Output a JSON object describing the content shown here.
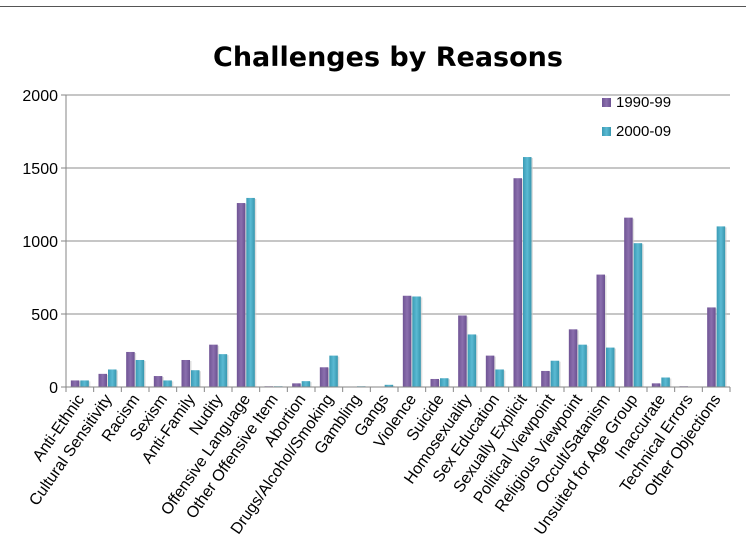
{
  "chart_data": {
    "type": "bar",
    "title": "Challenges by Reasons",
    "xlabel": "",
    "ylabel": "",
    "ylim": [
      0,
      2000
    ],
    "yticks": [
      0,
      500,
      1000,
      1500,
      2000
    ],
    "grid": true,
    "legend_position": "top-right",
    "categories": [
      "Anti-Ethnic",
      "Cultural Sensitivity",
      "Racism",
      "Sexism",
      "Anti-Family",
      "Nudity",
      "Offensive Language",
      "Other Offensive Item",
      "Abortion",
      "Drugs/Alcohol/Smoking",
      "Gambling",
      "Gangs",
      "Violence",
      "Suicide",
      "Homosexuality",
      "Sex Education",
      "Sexually Explicit",
      "Political Viewpoint",
      "Religious Viewpoint",
      "Occult/Satanism",
      "Unsuited for Age Group",
      "Inaccurate",
      "Technical Errors",
      "Other Objections"
    ],
    "series": [
      {
        "name": "1990-99",
        "color": "#8064A2",
        "values": [
          45,
          90,
          240,
          75,
          185,
          290,
          1260,
          5,
          25,
          135,
          0,
          0,
          625,
          55,
          490,
          215,
          1430,
          110,
          395,
          770,
          1160,
          25,
          5,
          545
        ]
      },
      {
        "name": "2000-09",
        "color": "#4BACC6",
        "values": [
          45,
          120,
          185,
          45,
          115,
          225,
          1295,
          5,
          40,
          215,
          5,
          15,
          620,
          60,
          360,
          120,
          1575,
          180,
          290,
          270,
          985,
          65,
          0,
          1100
        ]
      }
    ]
  }
}
